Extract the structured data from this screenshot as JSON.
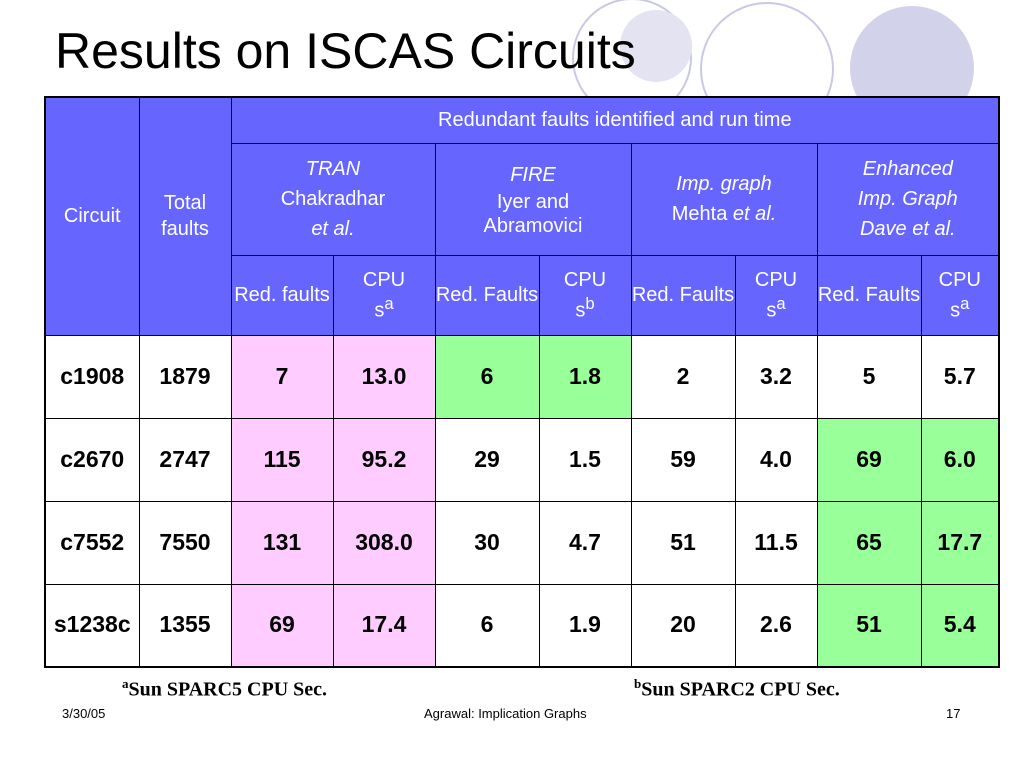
{
  "slide": {
    "title": "Results on ISCAS Circuits"
  },
  "table": {
    "col_circuit": "Circuit",
    "col_total_faults": "Total faults",
    "group_header": "Redundant faults identified and run time",
    "methods": [
      {
        "name": "TRAN",
        "line2": "Chakradhar",
        "line3": "et al."
      },
      {
        "name": "FIRE",
        "line2": "Iyer and",
        "line3": "Abramovici"
      },
      {
        "name": "Imp. graph",
        "line2": "Mehta",
        "line2_italic": "et al."
      },
      {
        "name": "Enhanced",
        "line2": "Imp. Graph",
        "line3": "Dave et al."
      }
    ],
    "sub_headers": [
      {
        "red": "Red. faults",
        "cpu": "CPU",
        "cpu_unit": "s",
        "sup": "a"
      },
      {
        "red": "Red. Faults",
        "cpu": "CPU",
        "cpu_unit": "s",
        "sup": "b"
      },
      {
        "red": "Red. Faults",
        "cpu": "CPU",
        "cpu_unit": "s",
        "sup": "a"
      },
      {
        "red": "Red. Faults",
        "cpu": "CPU",
        "cpu_unit": "s",
        "sup": "a"
      }
    ],
    "rows": [
      {
        "circuit": "c1908",
        "total": "1879",
        "vals": [
          "7",
          "13.0",
          "6",
          "1.8",
          "2",
          "3.2",
          "5",
          "5.7"
        ]
      },
      {
        "circuit": "c2670",
        "total": "2747",
        "vals": [
          "115",
          "95.2",
          "29",
          "1.5",
          "59",
          "4.0",
          "69",
          "6.0"
        ]
      },
      {
        "circuit": "c7552",
        "total": "7550",
        "vals": [
          "131",
          "308.0",
          "30",
          "4.7",
          "51",
          "11.5",
          "65",
          "17.7"
        ]
      },
      {
        "circuit": "s1238c",
        "total": "1355",
        "vals": [
          "69",
          "17.4",
          "6",
          "1.9",
          "20",
          "2.6",
          "51",
          "5.4"
        ]
      }
    ]
  },
  "notes": {
    "a_sup": "a",
    "a_text": "Sun SPARC5 CPU Sec.",
    "b_sup": "b",
    "b_text": "Sun SPARC2 CPU Sec."
  },
  "footer": {
    "date": "3/30/05",
    "center": "Agrawal: Implication Graphs",
    "page": "17"
  },
  "colors": {
    "header_bg": "#6666ff",
    "pink_highlight": "#ffccff",
    "green_highlight": "#99ff99",
    "circle_decor": "#d2d2ea"
  }
}
